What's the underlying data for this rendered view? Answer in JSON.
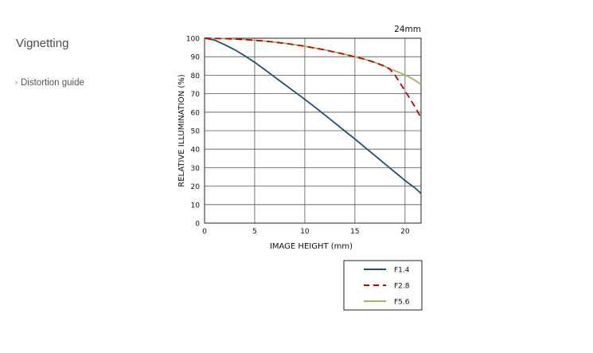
{
  "sidebar": {
    "title": "Vignetting",
    "link_label": "Distortion guide"
  },
  "chart_data": {
    "type": "line",
    "title": "24mm",
    "xlabel": "IMAGE HEIGHT (mm)",
    "ylabel": "RELATIVE ILLUMINATION (%)",
    "xlim": [
      0,
      21.6
    ],
    "ylim": [
      0,
      100
    ],
    "xticks": [
      0,
      5,
      10,
      15,
      20
    ],
    "yticks": [
      0,
      10,
      20,
      30,
      40,
      50,
      60,
      70,
      80,
      90,
      100
    ],
    "grid": true,
    "legend_position": "bottom-right",
    "series": [
      {
        "name": "F1.4",
        "color": "#1f4e79",
        "dash": "solid",
        "x": [
          0,
          1,
          2,
          3,
          4,
          5,
          6,
          7,
          8,
          9,
          10,
          11,
          12,
          13,
          14,
          15,
          16,
          17,
          18,
          19,
          20,
          21,
          21.6
        ],
        "y": [
          100,
          99,
          96.5,
          93.8,
          90.5,
          87,
          83,
          79,
          75,
          71,
          67,
          62.8,
          58.5,
          54.2,
          49.8,
          45.5,
          41,
          36.5,
          32,
          27.5,
          23,
          19,
          16
        ]
      },
      {
        "name": "F2.8",
        "color": "#c00000",
        "dash": "dashed",
        "x": [
          0,
          2,
          4,
          6,
          8,
          10,
          12,
          14,
          16,
          17,
          18,
          18.5,
          19,
          19.5,
          20,
          20.5,
          21,
          21.6
        ],
        "y": [
          100,
          99.8,
          99.3,
          98.5,
          97.3,
          95.7,
          93.7,
          91.3,
          88.6,
          86.9,
          84.8,
          83.2,
          80,
          75.8,
          71.5,
          67.2,
          62.8,
          57
        ]
      },
      {
        "name": "F5.6",
        "color": "#9bbb59",
        "dash": "solid",
        "x": [
          0,
          2,
          4,
          6,
          8,
          10,
          12,
          14,
          16,
          17,
          18,
          18.5,
          19,
          19.5,
          20,
          20.5,
          21,
          21.6
        ],
        "y": [
          100,
          99.8,
          99.3,
          98.5,
          97.3,
          95.7,
          93.7,
          91.3,
          88.6,
          86.9,
          84.8,
          83.5,
          82.4,
          81.3,
          80.1,
          78.8,
          77.3,
          75
        ]
      }
    ]
  }
}
